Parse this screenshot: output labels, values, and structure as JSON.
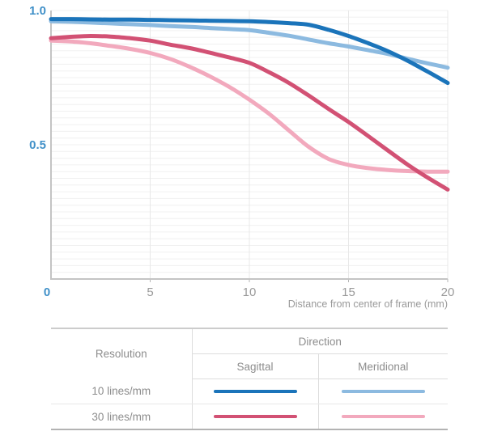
{
  "chart_data": {
    "type": "line",
    "title": "",
    "xlabel": "Distance from center of frame (mm)",
    "ylabel": "",
    "xlim": [
      0,
      20
    ],
    "ylim": [
      0,
      1.0
    ],
    "x_ticks": [
      0,
      5,
      10,
      15,
      20
    ],
    "x_tick_labels": [
      "0",
      "5",
      "10",
      "15",
      "20"
    ],
    "y_ticks": [
      1.0,
      0.5
    ],
    "y_tick_labels": [
      "1.0",
      "0.5"
    ],
    "grid": "horizontal minor lines every 0.025, vertical lines at x ticks",
    "legend_position": "bottom-table",
    "x": [
      0,
      1,
      2,
      3,
      4,
      5,
      6,
      7,
      8,
      9,
      10,
      11,
      12,
      13,
      14,
      15,
      16,
      17,
      18,
      19,
      20
    ],
    "series": [
      {
        "name": "10 lines/mm Meridional",
        "resolution": "10 lines/mm",
        "direction": "Meridional",
        "color": "#8cbae0",
        "values": [
          0.96,
          0.958,
          0.955,
          0.952,
          0.949,
          0.946,
          0.942,
          0.939,
          0.935,
          0.931,
          0.927,
          0.917,
          0.906,
          0.892,
          0.878,
          0.866,
          0.852,
          0.838,
          0.82,
          0.803,
          0.787
        ]
      },
      {
        "name": "30 lines/mm Meridional",
        "resolution": "30 lines/mm",
        "direction": "Meridional",
        "color": "#f2a9bd",
        "values": [
          0.888,
          0.885,
          0.878,
          0.868,
          0.857,
          0.842,
          0.82,
          0.79,
          0.755,
          0.715,
          0.668,
          0.615,
          0.553,
          0.492,
          0.447,
          0.425,
          0.413,
          0.406,
          0.402,
          0.4,
          0.4
        ]
      },
      {
        "name": "10 lines/mm Sagittal",
        "resolution": "10 lines/mm",
        "direction": "Sagittal",
        "color": "#1b74ba",
        "values": [
          0.968,
          0.968,
          0.967,
          0.966,
          0.966,
          0.965,
          0.964,
          0.963,
          0.962,
          0.961,
          0.96,
          0.957,
          0.953,
          0.947,
          0.928,
          0.905,
          0.878,
          0.848,
          0.812,
          0.772,
          0.73
        ]
      },
      {
        "name": "30 lines/mm Sagittal",
        "resolution": "30 lines/mm",
        "direction": "Sagittal",
        "color": "#d25174",
        "values": [
          0.897,
          0.902,
          0.905,
          0.903,
          0.897,
          0.888,
          0.873,
          0.86,
          0.843,
          0.825,
          0.805,
          0.77,
          0.73,
          0.683,
          0.633,
          0.585,
          0.532,
          0.478,
          0.425,
          0.377,
          0.333
        ]
      }
    ],
    "style": {
      "accent_label_color": "#4090c8",
      "tick_label_color": "#9a9a9a",
      "axis_title_color": "#999999",
      "axis_line_color": "#c4c4c4",
      "h_grid_color": "#f0f0f0",
      "v_grid_color": "#e8e8e8",
      "tick_mark_color": "#b5b5b5",
      "line_width": 5
    }
  },
  "legend_table": {
    "col_resolution": "Resolution",
    "col_direction": "Direction",
    "col_sagittal": "Sagittal",
    "col_meridional": "Meridional",
    "rows": [
      {
        "resolution": "10 lines/mm",
        "sagittal_color": "#1b74ba",
        "meridional_color": "#8cbae0"
      },
      {
        "resolution": "30 lines/mm",
        "sagittal_color": "#d25174",
        "meridional_color": "#f2a9bd"
      }
    ]
  }
}
